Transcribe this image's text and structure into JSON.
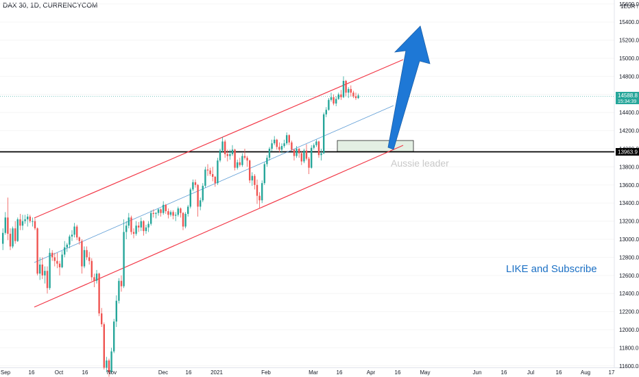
{
  "header": {
    "symbol": "DAX 30, 1D, CURRENCYCOM"
  },
  "price_axis": {
    "currency": "EUR",
    "ticks": [
      "15600.0",
      "15400.0",
      "15200.0",
      "15000.0",
      "14800.0",
      "14600.0",
      "14400.0",
      "14200.0",
      "14000.0",
      "13800.0",
      "13600.0",
      "13400.0",
      "13200.0",
      "13000.0",
      "12800.0",
      "12600.0",
      "12400.0",
      "12200.0",
      "12000.0",
      "11800.0",
      "11600.0"
    ],
    "last_price": "14588.8",
    "countdown": "15:34:39",
    "level_label": "13963.9"
  },
  "time_axis": {
    "labels": [
      "Sep",
      "16",
      "Oct",
      "16",
      "Nov",
      "Dec",
      "16",
      "2021",
      "Feb",
      "Mar",
      "16",
      "Apr",
      "16",
      "May",
      "Jun",
      "16",
      "Jul",
      "16",
      "Aug",
      "17"
    ]
  },
  "annotations": {
    "watermark": "Aussie leader",
    "cta": "LIKE and Subscribe"
  },
  "colors": {
    "up": "#26a69a",
    "down": "#ef5350",
    "channel": "#f23645",
    "midline": "#5b9bd5",
    "arrow": "#1e78d6",
    "support_line": "#000000",
    "last_price_bg": "#26a69a",
    "zone_fill": "#e3efe3"
  },
  "chart_data": {
    "type": "candlestick",
    "y_range": [
      11580,
      15710
    ],
    "last_price": 14588.8,
    "support_level": 13963.9,
    "candles": [
      {
        "date": "2020-09-01",
        "o": 12950,
        "h": 13120,
        "l": 12880,
        "c": 13070
      },
      {
        "date": "2020-09-02",
        "o": 13070,
        "h": 13300,
        "l": 13050,
        "c": 13240
      },
      {
        "date": "2020-09-03",
        "o": 13240,
        "h": 13460,
        "l": 12990,
        "c": 13060
      },
      {
        "date": "2020-09-04",
        "o": 13060,
        "h": 13120,
        "l": 12880,
        "c": 12920
      },
      {
        "date": "2020-09-07",
        "o": 12920,
        "h": 13140,
        "l": 12900,
        "c": 13120
      },
      {
        "date": "2020-09-08",
        "o": 13120,
        "h": 13200,
        "l": 12950,
        "c": 12980
      },
      {
        "date": "2020-09-09",
        "o": 12980,
        "h": 13240,
        "l": 12970,
        "c": 13220
      },
      {
        "date": "2020-09-10",
        "o": 13220,
        "h": 13280,
        "l": 13100,
        "c": 13150
      },
      {
        "date": "2020-09-11",
        "o": 13150,
        "h": 13270,
        "l": 13100,
        "c": 13200
      },
      {
        "date": "2020-09-14",
        "o": 13200,
        "h": 13270,
        "l": 13170,
        "c": 13220
      },
      {
        "date": "2020-09-15",
        "o": 13220,
        "h": 13280,
        "l": 13140,
        "c": 13250
      },
      {
        "date": "2020-09-16",
        "o": 13250,
        "h": 13270,
        "l": 13180,
        "c": 13200
      },
      {
        "date": "2020-09-17",
        "o": 13200,
        "h": 13240,
        "l": 13140,
        "c": 13200
      },
      {
        "date": "2020-09-18",
        "o": 13200,
        "h": 13230,
        "l": 13100,
        "c": 13120
      },
      {
        "date": "2020-09-21",
        "o": 13120,
        "h": 13130,
        "l": 12600,
        "c": 12620
      },
      {
        "date": "2020-09-22",
        "o": 12620,
        "h": 12800,
        "l": 12550,
        "c": 12720
      },
      {
        "date": "2020-09-23",
        "o": 12720,
        "h": 12800,
        "l": 12560,
        "c": 12600
      },
      {
        "date": "2020-09-24",
        "o": 12600,
        "h": 12700,
        "l": 12510,
        "c": 12650
      },
      {
        "date": "2020-09-25",
        "o": 12650,
        "h": 12700,
        "l": 12400,
        "c": 12460
      },
      {
        "date": "2020-09-28",
        "o": 12460,
        "h": 12900,
        "l": 12440,
        "c": 12850
      },
      {
        "date": "2020-09-29",
        "o": 12850,
        "h": 12880,
        "l": 12760,
        "c": 12800
      },
      {
        "date": "2020-09-30",
        "o": 12800,
        "h": 12850,
        "l": 12700,
        "c": 12760
      },
      {
        "date": "2020-10-01",
        "o": 12760,
        "h": 12850,
        "l": 12680,
        "c": 12730
      },
      {
        "date": "2020-10-02",
        "o": 12730,
        "h": 12760,
        "l": 12600,
        "c": 12690
      },
      {
        "date": "2020-10-05",
        "o": 12690,
        "h": 12870,
        "l": 12680,
        "c": 12830
      },
      {
        "date": "2020-10-06",
        "o": 12830,
        "h": 12980,
        "l": 12800,
        "c": 12910
      },
      {
        "date": "2020-10-07",
        "o": 12910,
        "h": 12960,
        "l": 12860,
        "c": 12940
      },
      {
        "date": "2020-10-08",
        "o": 12940,
        "h": 13050,
        "l": 12900,
        "c": 13030
      },
      {
        "date": "2020-10-09",
        "o": 13030,
        "h": 13100,
        "l": 12980,
        "c": 13050
      },
      {
        "date": "2020-10-12",
        "o": 13050,
        "h": 13180,
        "l": 13020,
        "c": 13140
      },
      {
        "date": "2020-10-13",
        "o": 13140,
        "h": 13160,
        "l": 12990,
        "c": 13020
      },
      {
        "date": "2020-10-14",
        "o": 13020,
        "h": 13030,
        "l": 12940,
        "c": 12980
      },
      {
        "date": "2020-10-15",
        "o": 12980,
        "h": 13000,
        "l": 12620,
        "c": 12700
      },
      {
        "date": "2020-10-16",
        "o": 12700,
        "h": 12920,
        "l": 12680,
        "c": 12880
      },
      {
        "date": "2020-10-19",
        "o": 12880,
        "h": 12920,
        "l": 12770,
        "c": 12800
      },
      {
        "date": "2020-10-20",
        "o": 12800,
        "h": 12860,
        "l": 12720,
        "c": 12760
      },
      {
        "date": "2020-10-21",
        "o": 12760,
        "h": 12790,
        "l": 12540,
        "c": 12580
      },
      {
        "date": "2020-10-22",
        "o": 12580,
        "h": 12620,
        "l": 12470,
        "c": 12540
      },
      {
        "date": "2020-10-23",
        "o": 12540,
        "h": 12660,
        "l": 12510,
        "c": 12620
      },
      {
        "date": "2020-10-26",
        "o": 12620,
        "h": 12630,
        "l": 12150,
        "c": 12180
      },
      {
        "date": "2020-10-27",
        "o": 12180,
        "h": 12240,
        "l": 12030,
        "c": 12060
      },
      {
        "date": "2020-10-28",
        "o": 12060,
        "h": 12080,
        "l": 11560,
        "c": 11580
      },
      {
        "date": "2020-10-29",
        "o": 11580,
        "h": 11700,
        "l": 11530,
        "c": 11660
      },
      {
        "date": "2020-10-30",
        "o": 11660,
        "h": 11680,
        "l": 11480,
        "c": 11530
      },
      {
        "date": "2020-11-02",
        "o": 11530,
        "h": 11800,
        "l": 11510,
        "c": 11760
      },
      {
        "date": "2020-11-03",
        "o": 11760,
        "h": 12120,
        "l": 11740,
        "c": 12090
      },
      {
        "date": "2020-11-04",
        "o": 12090,
        "h": 12380,
        "l": 12030,
        "c": 12320
      },
      {
        "date": "2020-11-05",
        "o": 12320,
        "h": 12570,
        "l": 12290,
        "c": 12540
      },
      {
        "date": "2020-11-06",
        "o": 12540,
        "h": 12600,
        "l": 12420,
        "c": 12480
      },
      {
        "date": "2020-11-09",
        "o": 12480,
        "h": 13220,
        "l": 12460,
        "c": 13080
      },
      {
        "date": "2020-11-10",
        "o": 13080,
        "h": 13200,
        "l": 13000,
        "c": 13150
      },
      {
        "date": "2020-11-11",
        "o": 13150,
        "h": 13290,
        "l": 13120,
        "c": 13240
      },
      {
        "date": "2020-11-12",
        "o": 13240,
        "h": 13260,
        "l": 13050,
        "c": 13080
      },
      {
        "date": "2020-11-13",
        "o": 13080,
        "h": 13120,
        "l": 13010,
        "c": 13060
      },
      {
        "date": "2020-11-16",
        "o": 13060,
        "h": 13200,
        "l": 13040,
        "c": 13150
      },
      {
        "date": "2020-11-17",
        "o": 13150,
        "h": 13190,
        "l": 13080,
        "c": 13130
      },
      {
        "date": "2020-11-18",
        "o": 13130,
        "h": 13240,
        "l": 13090,
        "c": 13200
      },
      {
        "date": "2020-11-19",
        "o": 13200,
        "h": 13210,
        "l": 13040,
        "c": 13090
      },
      {
        "date": "2020-11-20",
        "o": 13090,
        "h": 13160,
        "l": 13060,
        "c": 13130
      },
      {
        "date": "2020-11-23",
        "o": 13130,
        "h": 13200,
        "l": 13080,
        "c": 13170
      },
      {
        "date": "2020-11-24",
        "o": 13170,
        "h": 13320,
        "l": 13150,
        "c": 13290
      },
      {
        "date": "2020-11-25",
        "o": 13290,
        "h": 13330,
        "l": 13240,
        "c": 13280
      },
      {
        "date": "2020-11-26",
        "o": 13280,
        "h": 13300,
        "l": 13230,
        "c": 13290
      },
      {
        "date": "2020-11-27",
        "o": 13290,
        "h": 13340,
        "l": 13260,
        "c": 13330
      },
      {
        "date": "2020-11-30",
        "o": 13330,
        "h": 13340,
        "l": 13250,
        "c": 13290
      },
      {
        "date": "2020-12-01",
        "o": 13290,
        "h": 13420,
        "l": 13270,
        "c": 13380
      },
      {
        "date": "2020-12-02",
        "o": 13380,
        "h": 13390,
        "l": 13280,
        "c": 13310
      },
      {
        "date": "2020-12-03",
        "o": 13310,
        "h": 13340,
        "l": 13230,
        "c": 13270
      },
      {
        "date": "2020-12-04",
        "o": 13270,
        "h": 13320,
        "l": 13250,
        "c": 13300
      },
      {
        "date": "2020-12-07",
        "o": 13300,
        "h": 13320,
        "l": 13220,
        "c": 13260
      },
      {
        "date": "2020-12-08",
        "o": 13260,
        "h": 13300,
        "l": 13200,
        "c": 13270
      },
      {
        "date": "2020-12-09",
        "o": 13270,
        "h": 13360,
        "l": 13250,
        "c": 13340
      },
      {
        "date": "2020-12-10",
        "o": 13340,
        "h": 13350,
        "l": 13240,
        "c": 13290
      },
      {
        "date": "2020-12-11",
        "o": 13290,
        "h": 13300,
        "l": 13100,
        "c": 13140
      },
      {
        "date": "2020-12-14",
        "o": 13140,
        "h": 13300,
        "l": 13120,
        "c": 13280
      },
      {
        "date": "2020-12-15",
        "o": 13280,
        "h": 13380,
        "l": 13250,
        "c": 13360
      },
      {
        "date": "2020-12-16",
        "o": 13360,
        "h": 13570,
        "l": 13340,
        "c": 13550
      },
      {
        "date": "2020-12-17",
        "o": 13550,
        "h": 13660,
        "l": 13530,
        "c": 13630
      },
      {
        "date": "2020-12-18",
        "o": 13630,
        "h": 13660,
        "l": 13570,
        "c": 13600
      },
      {
        "date": "2020-12-21",
        "o": 13600,
        "h": 13610,
        "l": 13250,
        "c": 13360
      },
      {
        "date": "2020-12-22",
        "o": 13360,
        "h": 13460,
        "l": 13320,
        "c": 13430
      },
      {
        "date": "2020-12-23",
        "o": 13430,
        "h": 13620,
        "l": 13410,
        "c": 13590
      },
      {
        "date": "2020-12-28",
        "o": 13590,
        "h": 13800,
        "l": 13570,
        "c": 13770
      },
      {
        "date": "2020-12-29",
        "o": 13770,
        "h": 13830,
        "l": 13700,
        "c": 13760
      },
      {
        "date": "2020-12-30",
        "o": 13760,
        "h": 13790,
        "l": 13700,
        "c": 13720
      },
      {
        "date": "2021-01-04",
        "o": 13720,
        "h": 13800,
        "l": 13640,
        "c": 13690
      },
      {
        "date": "2021-01-05",
        "o": 13690,
        "h": 13700,
        "l": 13580,
        "c": 13620
      },
      {
        "date": "2021-01-06",
        "o": 13620,
        "h": 13900,
        "l": 13600,
        "c": 13870
      },
      {
        "date": "2021-01-07",
        "o": 13870,
        "h": 14000,
        "l": 13850,
        "c": 13980
      },
      {
        "date": "2021-01-08",
        "o": 13980,
        "h": 14130,
        "l": 13960,
        "c": 14080
      },
      {
        "date": "2021-01-11",
        "o": 14080,
        "h": 14100,
        "l": 13900,
        "c": 13940
      },
      {
        "date": "2021-01-12",
        "o": 13940,
        "h": 13990,
        "l": 13860,
        "c": 13920
      },
      {
        "date": "2021-01-13",
        "o": 13920,
        "h": 13990,
        "l": 13880,
        "c": 13940
      },
      {
        "date": "2021-01-14",
        "o": 13940,
        "h": 14040,
        "l": 13920,
        "c": 13990
      },
      {
        "date": "2021-01-15",
        "o": 13990,
        "h": 14000,
        "l": 13760,
        "c": 13790
      },
      {
        "date": "2021-01-18",
        "o": 13790,
        "h": 13880,
        "l": 13770,
        "c": 13850
      },
      {
        "date": "2021-01-19",
        "o": 13850,
        "h": 13900,
        "l": 13800,
        "c": 13820
      },
      {
        "date": "2021-01-20",
        "o": 13820,
        "h": 13950,
        "l": 13800,
        "c": 13920
      },
      {
        "date": "2021-01-21",
        "o": 13920,
        "h": 14000,
        "l": 13880,
        "c": 13900
      },
      {
        "date": "2021-01-22",
        "o": 13900,
        "h": 13920,
        "l": 13800,
        "c": 13870
      },
      {
        "date": "2021-01-25",
        "o": 13870,
        "h": 13880,
        "l": 13620,
        "c": 13650
      },
      {
        "date": "2021-01-26",
        "o": 13650,
        "h": 13740,
        "l": 13590,
        "c": 13700
      },
      {
        "date": "2021-01-27",
        "o": 13700,
        "h": 13720,
        "l": 13550,
        "c": 13600
      },
      {
        "date": "2021-01-28",
        "o": 13600,
        "h": 13660,
        "l": 13390,
        "c": 13480
      },
      {
        "date": "2021-01-29",
        "o": 13480,
        "h": 13520,
        "l": 13340,
        "c": 13430
      },
      {
        "date": "2021-02-01",
        "o": 13430,
        "h": 13650,
        "l": 13400,
        "c": 13620
      },
      {
        "date": "2021-02-02",
        "o": 13620,
        "h": 13850,
        "l": 13600,
        "c": 13830
      },
      {
        "date": "2021-02-03",
        "o": 13830,
        "h": 13930,
        "l": 13800,
        "c": 13900
      },
      {
        "date": "2021-02-04",
        "o": 13900,
        "h": 14020,
        "l": 13870,
        "c": 14000
      },
      {
        "date": "2021-02-05",
        "o": 14000,
        "h": 14100,
        "l": 13970,
        "c": 14060
      },
      {
        "date": "2021-02-08",
        "o": 14060,
        "h": 14140,
        "l": 14040,
        "c": 14100
      },
      {
        "date": "2021-02-09",
        "o": 14100,
        "h": 14110,
        "l": 13990,
        "c": 14020
      },
      {
        "date": "2021-02-10",
        "o": 14020,
        "h": 14070,
        "l": 13960,
        "c": 13990
      },
      {
        "date": "2021-02-11",
        "o": 13990,
        "h": 14060,
        "l": 13950,
        "c": 14030
      },
      {
        "date": "2021-02-12",
        "o": 14030,
        "h": 14100,
        "l": 14010,
        "c": 14060
      },
      {
        "date": "2021-02-15",
        "o": 14060,
        "h": 14180,
        "l": 14040,
        "c": 14150
      },
      {
        "date": "2021-02-16",
        "o": 14150,
        "h": 14160,
        "l": 14040,
        "c": 14070
      },
      {
        "date": "2021-02-17",
        "o": 14070,
        "h": 14090,
        "l": 13970,
        "c": 13990
      },
      {
        "date": "2021-02-18",
        "o": 13990,
        "h": 14000,
        "l": 13870,
        "c": 13920
      },
      {
        "date": "2021-02-19",
        "o": 13920,
        "h": 14030,
        "l": 13900,
        "c": 14000
      },
      {
        "date": "2021-02-22",
        "o": 14000,
        "h": 14010,
        "l": 13900,
        "c": 13950
      },
      {
        "date": "2021-02-23",
        "o": 13950,
        "h": 13970,
        "l": 13820,
        "c": 13860
      },
      {
        "date": "2021-02-24",
        "o": 13860,
        "h": 14000,
        "l": 13840,
        "c": 13980
      },
      {
        "date": "2021-02-25",
        "o": 13980,
        "h": 14050,
        "l": 13870,
        "c": 13890
      },
      {
        "date": "2021-02-26",
        "o": 13890,
        "h": 13910,
        "l": 13720,
        "c": 13790
      },
      {
        "date": "2021-03-01",
        "o": 13790,
        "h": 14040,
        "l": 13780,
        "c": 14010
      },
      {
        "date": "2021-03-02",
        "o": 14010,
        "h": 14060,
        "l": 13990,
        "c": 14040
      },
      {
        "date": "2021-03-03",
        "o": 14040,
        "h": 14100,
        "l": 14020,
        "c": 14080
      },
      {
        "date": "2021-03-04",
        "o": 14080,
        "h": 14090,
        "l": 13900,
        "c": 13930
      },
      {
        "date": "2021-03-05",
        "o": 13930,
        "h": 14000,
        "l": 13870,
        "c": 13950
      },
      {
        "date": "2021-03-08",
        "o": 13950,
        "h": 14400,
        "l": 13940,
        "c": 14380
      },
      {
        "date": "2021-03-09",
        "o": 14380,
        "h": 14460,
        "l": 14350,
        "c": 14430
      },
      {
        "date": "2021-03-10",
        "o": 14430,
        "h": 14560,
        "l": 14420,
        "c": 14540
      },
      {
        "date": "2021-03-11",
        "o": 14540,
        "h": 14620,
        "l": 14520,
        "c": 14570
      },
      {
        "date": "2021-03-12",
        "o": 14570,
        "h": 14600,
        "l": 14480,
        "c": 14500
      },
      {
        "date": "2021-03-15",
        "o": 14500,
        "h": 14580,
        "l": 14470,
        "c": 14550
      },
      {
        "date": "2021-03-16",
        "o": 14550,
        "h": 14620,
        "l": 14540,
        "c": 14600
      },
      {
        "date": "2021-03-17",
        "o": 14600,
        "h": 14650,
        "l": 14540,
        "c": 14570
      },
      {
        "date": "2021-03-18",
        "o": 14570,
        "h": 14800,
        "l": 14560,
        "c": 14750
      },
      {
        "date": "2021-03-19",
        "o": 14750,
        "h": 14760,
        "l": 14580,
        "c": 14620
      },
      {
        "date": "2021-03-22",
        "o": 14620,
        "h": 14680,
        "l": 14560,
        "c": 14660
      },
      {
        "date": "2021-03-23",
        "o": 14660,
        "h": 14700,
        "l": 14580,
        "c": 14620
      },
      {
        "date": "2021-03-24",
        "o": 14620,
        "h": 14640,
        "l": 14560,
        "c": 14580
      },
      {
        "date": "2021-03-25",
        "o": 14580,
        "h": 14620,
        "l": 14540,
        "c": 14560
      },
      {
        "date": "2021-03-26",
        "o": 14560,
        "h": 14610,
        "l": 14550,
        "c": 14588.8
      }
    ]
  }
}
